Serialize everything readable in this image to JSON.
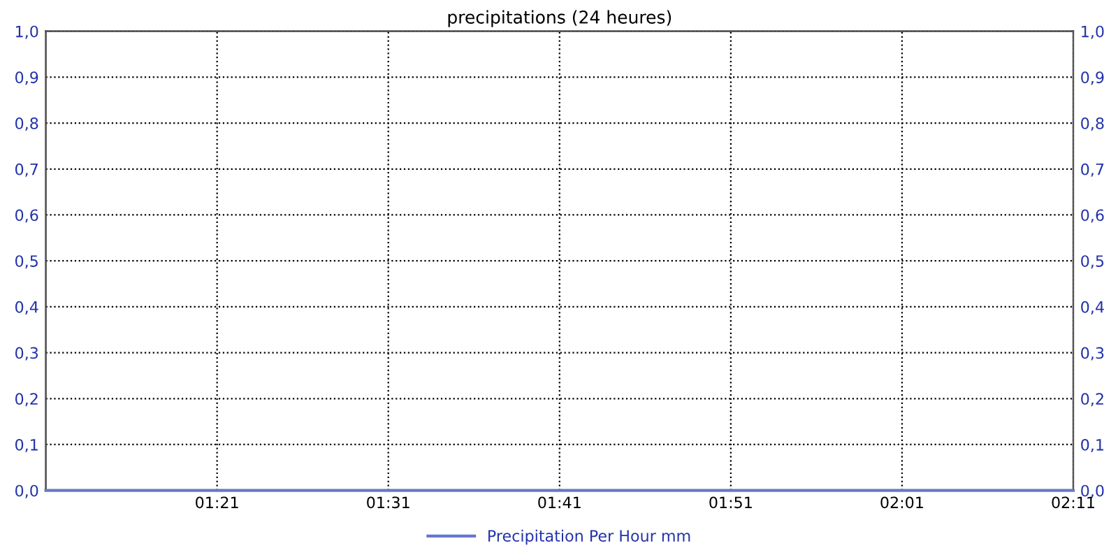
{
  "chart_data": {
    "type": "line",
    "title": "precipitations (24 heures)",
    "x": [
      1.183333,
      2.183333
    ],
    "series": [
      {
        "name": "Precipitation Per Hour mm",
        "color": "#6677cc",
        "values": [
          0,
          0
        ]
      }
    ],
    "xlim": [
      1.183333,
      2.183333
    ],
    "xticks": [
      {
        "value": 1.35,
        "label": "01:21"
      },
      {
        "value": 1.516667,
        "label": "01:31"
      },
      {
        "value": 1.683333,
        "label": "01:41"
      },
      {
        "value": 1.85,
        "label": "01:51"
      },
      {
        "value": 2.016667,
        "label": "02:01"
      },
      {
        "value": 2.183333,
        "label": "02:11"
      }
    ],
    "ylim": [
      0,
      1
    ],
    "yticks": [
      {
        "value": 0,
        "label": "0,0"
      },
      {
        "value": 0.1,
        "label": "0,1"
      },
      {
        "value": 0.2,
        "label": "0,2"
      },
      {
        "value": 0.3,
        "label": "0,3"
      },
      {
        "value": 0.4,
        "label": "0,4"
      },
      {
        "value": 0.5,
        "label": "0,5"
      },
      {
        "value": 0.6,
        "label": "0,6"
      },
      {
        "value": 0.7,
        "label": "0,7"
      },
      {
        "value": 0.8,
        "label": "0,8"
      },
      {
        "value": 0.9,
        "label": "0,9"
      },
      {
        "value": 1,
        "label": "1,0"
      }
    ],
    "y2lim": [
      0,
      1
    ],
    "y2ticks": [
      {
        "value": 0,
        "label": "0,0"
      },
      {
        "value": 0.1,
        "label": "0,1"
      },
      {
        "value": 0.2,
        "label": "0,2"
      },
      {
        "value": 0.3,
        "label": "0,3"
      },
      {
        "value": 0.4,
        "label": "0,4"
      },
      {
        "value": 0.5,
        "label": "0,5"
      },
      {
        "value": 0.6,
        "label": "0,6"
      },
      {
        "value": 0.7,
        "label": "0,7"
      },
      {
        "value": 0.8,
        "label": "0,8"
      },
      {
        "value": 0.9,
        "label": "0,9"
      },
      {
        "value": 1,
        "label": "1,0"
      }
    ],
    "grid": true,
    "legend": "bottom",
    "marker": "none",
    "line_style": "solid"
  }
}
